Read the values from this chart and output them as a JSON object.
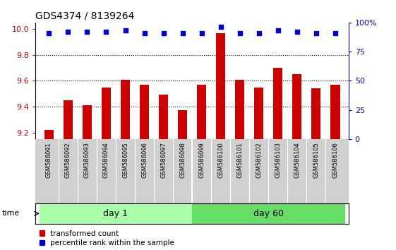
{
  "title": "GDS4374 / 8139264",
  "samples": [
    "GSM586091",
    "GSM586092",
    "GSM586093",
    "GSM586094",
    "GSM586095",
    "GSM586096",
    "GSM586097",
    "GSM586098",
    "GSM586099",
    "GSM586100",
    "GSM586101",
    "GSM586102",
    "GSM586103",
    "GSM586104",
    "GSM586105",
    "GSM586106"
  ],
  "red_values": [
    9.22,
    9.45,
    9.41,
    9.55,
    9.61,
    9.57,
    9.49,
    9.37,
    9.57,
    9.97,
    9.61,
    9.55,
    9.7,
    9.65,
    9.54,
    9.57
  ],
  "blue_pct": [
    91,
    92,
    92,
    92,
    93,
    91,
    91,
    91,
    91,
    96,
    91,
    91,
    93,
    92,
    91,
    91
  ],
  "ylim_left": [
    9.15,
    10.05
  ],
  "ylim_right": [
    0,
    100
  ],
  "yticks_left": [
    9.2,
    9.4,
    9.6,
    9.8,
    10.0
  ],
  "yticks_right": [
    0,
    25,
    50,
    75,
    100
  ],
  "ytick_labels_right": [
    "0",
    "25",
    "50",
    "75",
    "100%"
  ],
  "bar_color": "#cc0000",
  "dot_color": "#0000cc",
  "day1_color": "#aaffaa",
  "day60_color": "#66dd66",
  "day1_label": "day 1",
  "day60_label": "day 60",
  "legend_red": "transformed count",
  "legend_blue": "percentile rank within the sample",
  "baseline": 9.15,
  "grid_ticks": [
    9.4,
    9.6,
    9.8
  ],
  "bar_width": 0.5
}
